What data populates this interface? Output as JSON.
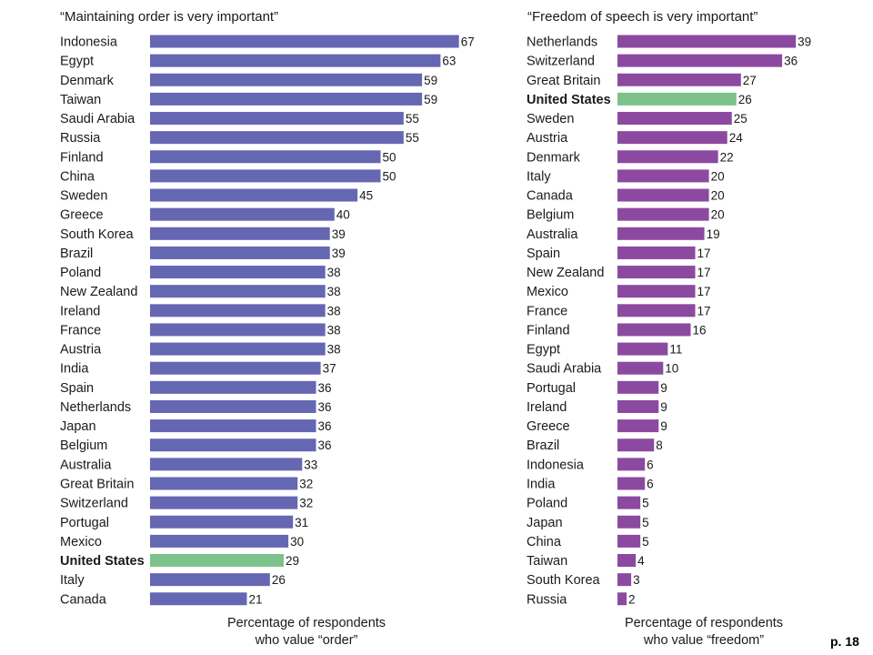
{
  "page_number": "p. 18",
  "colors": {
    "left_bar": "#6567b3",
    "right_bar": "#8b4aa0",
    "highlight": "#7cc28a"
  },
  "chart_data": [
    {
      "type": "bar",
      "orientation": "horizontal",
      "title": "“Maintaining order is very important”",
      "xlabel": [
        "Percentage of respondents",
        "who value “order”"
      ],
      "highlight": "United States",
      "categories": [
        "Indonesia",
        "Egypt",
        "Denmark",
        "Taiwan",
        "Saudi Arabia",
        "Russia",
        "Finland",
        "China",
        "Sweden",
        "Greece",
        "South Korea",
        "Brazil",
        "Poland",
        "New Zealand",
        "Ireland",
        "France",
        "Austria",
        "India",
        "Spain",
        "Netherlands",
        "Japan",
        "Belgium",
        "Australia",
        "Great Britain",
        "Switzerland",
        "Portugal",
        "Mexico",
        "United States",
        "Italy",
        "Canada"
      ],
      "values": [
        67,
        63,
        59,
        59,
        55,
        55,
        50,
        50,
        45,
        40,
        39,
        39,
        38,
        38,
        38,
        38,
        38,
        37,
        36,
        36,
        36,
        36,
        33,
        32,
        32,
        31,
        30,
        29,
        26,
        21
      ]
    },
    {
      "type": "bar",
      "orientation": "horizontal",
      "title": "“Freedom of speech is very important”",
      "xlabel": [
        "Percentage of respondents",
        "who value “freedom”"
      ],
      "highlight": "United States",
      "categories": [
        "Netherlands",
        "Switzerland",
        "Great Britain",
        "United States",
        "Sweden",
        "Austria",
        "Denmark",
        "Italy",
        "Canada",
        "Belgium",
        "Australia",
        "Spain",
        "New Zealand",
        "Mexico",
        "France",
        "Finland",
        "Egypt",
        "Saudi Arabia",
        "Portugal",
        "Ireland",
        "Greece",
        "Brazil",
        "Indonesia",
        "India",
        "Poland",
        "Japan",
        "China",
        "Taiwan",
        "South Korea",
        "Russia"
      ],
      "values": [
        39,
        36,
        27,
        26,
        25,
        24,
        22,
        20,
        20,
        20,
        19,
        17,
        17,
        17,
        17,
        16,
        11,
        10,
        9,
        9,
        9,
        8,
        6,
        6,
        5,
        5,
        5,
        4,
        3,
        2
      ]
    }
  ]
}
